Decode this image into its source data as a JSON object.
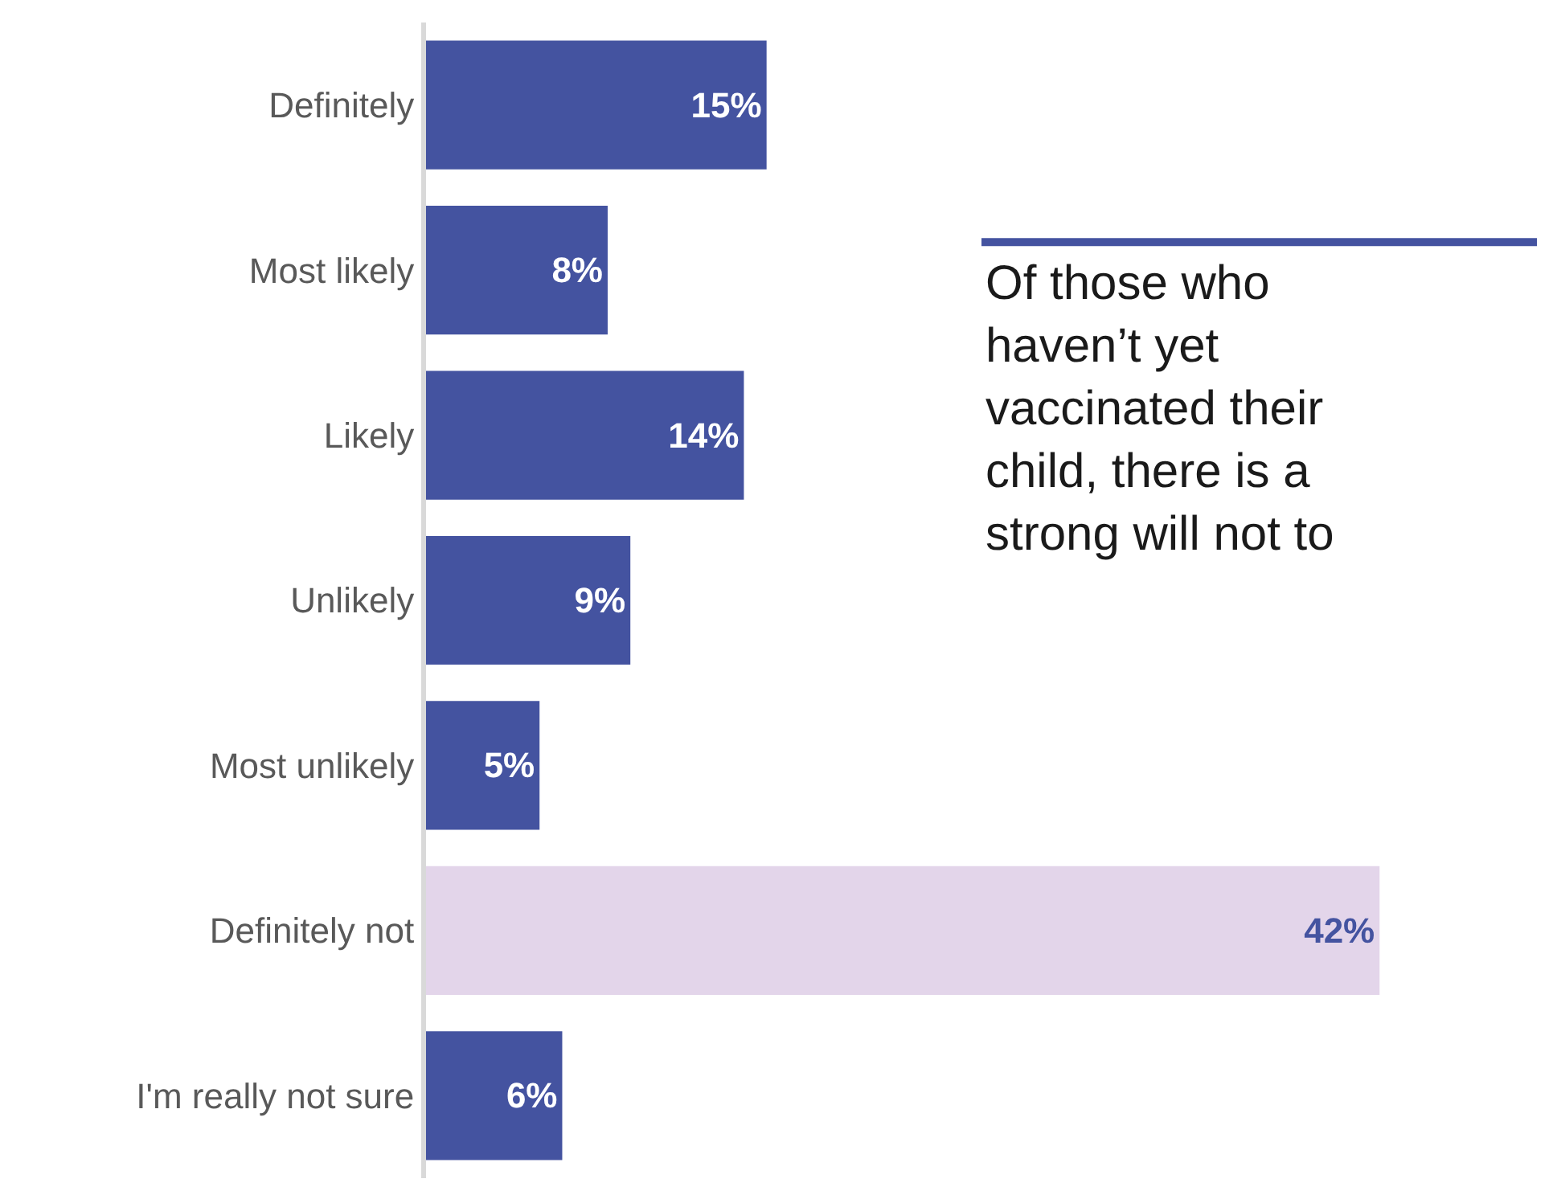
{
  "chart_data": {
    "type": "bar",
    "orientation": "horizontal",
    "categories": [
      "Definitely",
      "Most likely",
      "Likely",
      "Unlikely",
      "Most unlikely",
      "Definitely not",
      "I'm really not sure"
    ],
    "values": [
      15,
      8,
      14,
      9,
      5,
      42,
      6
    ],
    "value_labels": [
      "15%",
      "8%",
      "14%",
      "9%",
      "5%",
      "42%",
      "6%"
    ],
    "colors": [
      "#4453a0",
      "#4453a0",
      "#4453a0",
      "#4453a0",
      "#4453a0",
      "#e3d5ea",
      "#4453a0"
    ],
    "annotations": [
      "Of those who haven’t yet vaccinated their child, there is a strong will not to"
    ],
    "data_labels": false
  }
}
